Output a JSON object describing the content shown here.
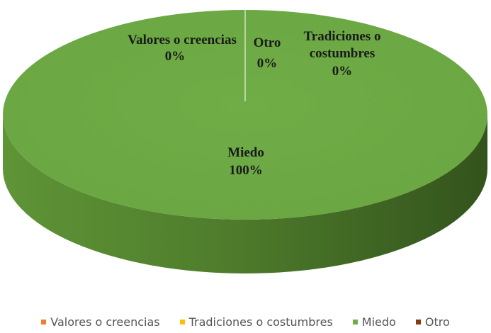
{
  "chart_data": {
    "type": "pie",
    "style": "3d",
    "series": [
      {
        "name": "Valores o creencias",
        "value": 0,
        "label": "Valores o creencias",
        "pct": "0%",
        "color": "#ED7D31"
      },
      {
        "name": "Tradiciones o costumbres",
        "value": 0,
        "label": "Tradiciones o costumbres",
        "pct": "0%",
        "color": "#FFC000"
      },
      {
        "name": "Miedo",
        "value": 100,
        "label": "Miedo",
        "pct": "100%",
        "color": "#70AD47"
      },
      {
        "name": "Otro",
        "value": 0,
        "label": "Otro",
        "pct": "0%",
        "color": "#843C0C"
      }
    ],
    "legend_position": "bottom"
  }
}
